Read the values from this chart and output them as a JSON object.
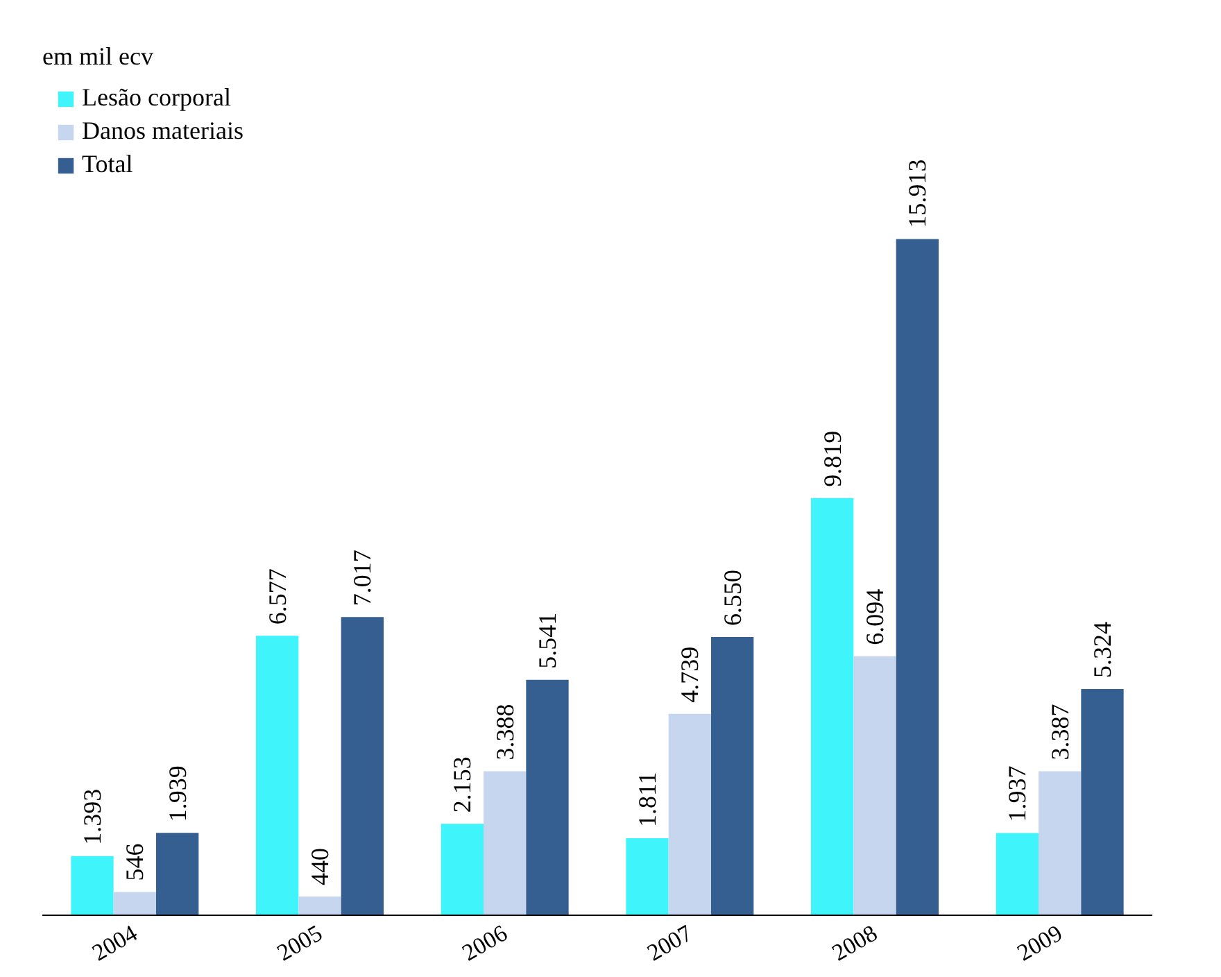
{
  "chart_data": {
    "type": "bar",
    "annotations": [
      "em mil ecv"
    ],
    "categories": [
      "2004",
      "2005",
      "2006",
      "2007",
      "2008",
      "2009"
    ],
    "legend": "top left",
    "grid": false,
    "series": [
      {
        "name": "Lesão corporal",
        "color": "#40f4fc",
        "values": [
          1393,
          6577,
          2153,
          1811,
          9819,
          1937
        ],
        "value_labels": [
          "1.393",
          "6.577",
          "2.153",
          "1.811",
          "9.819",
          "1.937"
        ]
      },
      {
        "name": "Danos materiais",
        "color": "#c6d6ee",
        "values": [
          546,
          440,
          3388,
          4739,
          6094,
          3387
        ],
        "value_labels": [
          "546",
          "440",
          "3.388",
          "4.739",
          "6.094",
          "3.387"
        ]
      },
      {
        "name": "Total",
        "color": "#365f91",
        "values": [
          1939,
          7017,
          5541,
          6550,
          15913,
          5324
        ],
        "value_labels": [
          "1.939",
          "7.017",
          "5.541",
          "6.550",
          "15.913",
          "5.324"
        ]
      }
    ]
  }
}
